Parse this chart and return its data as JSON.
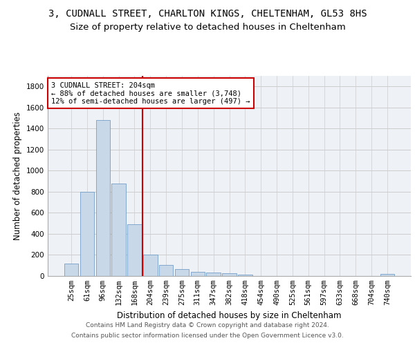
{
  "title_line1": "3, CUDNALL STREET, CHARLTON KINGS, CHELTENHAM, GL53 8HS",
  "title_line2": "Size of property relative to detached houses in Cheltenham",
  "xlabel": "Distribution of detached houses by size in Cheltenham",
  "ylabel": "Number of detached properties",
  "categories": [
    "25sqm",
    "61sqm",
    "96sqm",
    "132sqm",
    "168sqm",
    "204sqm",
    "239sqm",
    "275sqm",
    "311sqm",
    "347sqm",
    "382sqm",
    "418sqm",
    "454sqm",
    "490sqm",
    "525sqm",
    "561sqm",
    "597sqm",
    "633sqm",
    "668sqm",
    "704sqm",
    "740sqm"
  ],
  "values": [
    120,
    800,
    1480,
    880,
    490,
    205,
    105,
    65,
    42,
    32,
    28,
    10,
    2,
    0,
    0,
    0,
    0,
    0,
    0,
    0,
    18
  ],
  "bar_color": "#c8d8e8",
  "bar_edge_color": "#6090c0",
  "highlight_index": 5,
  "highlight_line_color": "#cc0000",
  "annotation_text": "3 CUDNALL STREET: 204sqm\n← 88% of detached houses are smaller (3,748)\n12% of semi-detached houses are larger (497) →",
  "annotation_box_color": "#ffffff",
  "annotation_box_edge_color": "#cc0000",
  "ylim": [
    0,
    1900
  ],
  "yticks": [
    0,
    200,
    400,
    600,
    800,
    1000,
    1200,
    1400,
    1600,
    1800
  ],
  "grid_color": "#cccccc",
  "background_color": "#eef2f7",
  "footer_line1": "Contains HM Land Registry data © Crown copyright and database right 2024.",
  "footer_line2": "Contains public sector information licensed under the Open Government Licence v3.0.",
  "title_fontsize": 10,
  "subtitle_fontsize": 9.5,
  "axis_label_fontsize": 8.5,
  "tick_fontsize": 7.5,
  "annotation_fontsize": 7.5,
  "footer_fontsize": 6.5
}
